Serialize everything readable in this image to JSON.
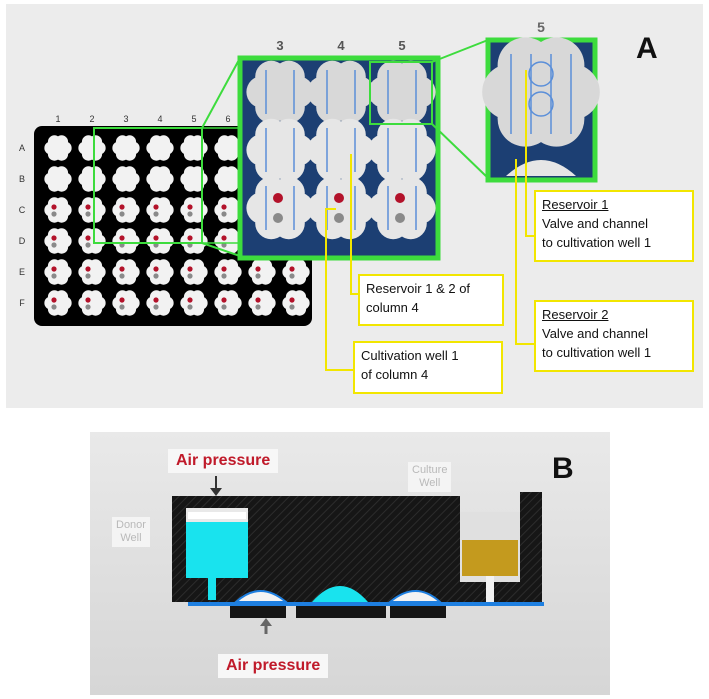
{
  "panel_a": {
    "letter": "A",
    "columns": [
      "1",
      "2",
      "3",
      "4",
      "5",
      "6"
    ],
    "rows": [
      "A",
      "B",
      "C",
      "D",
      "E",
      "F"
    ],
    "zoom_columns": [
      "3",
      "4",
      "5"
    ],
    "detail_column": "5",
    "callouts": {
      "reservoir": {
        "line1": "Reservoir 1 & 2 of",
        "line2": "column 4"
      },
      "cultivation": {
        "line1": "Cultivation well 1",
        "line2": "of column 4"
      },
      "res1": {
        "title": "Reservoir 1",
        "line1": "Valve and channel",
        "line2": "to cultivation well 1"
      },
      "res2": {
        "title": "Reservoir 2",
        "line1": "Valve and channel",
        "line2": "to cultivation well 1"
      }
    },
    "colors": {
      "plate": "#000000",
      "highlight": "#3ddc3d",
      "callout_border": "#f2e600",
      "well_red": "#b3122a"
    }
  },
  "panel_b": {
    "letter": "B",
    "air_pressure_top": "Air pressure",
    "air_pressure_bottom": "Air pressure",
    "donor_well": {
      "line1": "Donor",
      "line2": "Well"
    },
    "culture_well": {
      "line1": "Culture",
      "line2": "Well"
    },
    "colors": {
      "donor_liquid": "#19e3ee",
      "culture_liquid": "#c49a1e",
      "channel": "#1e7fe0",
      "pressure_text": "#c01a2a"
    }
  }
}
